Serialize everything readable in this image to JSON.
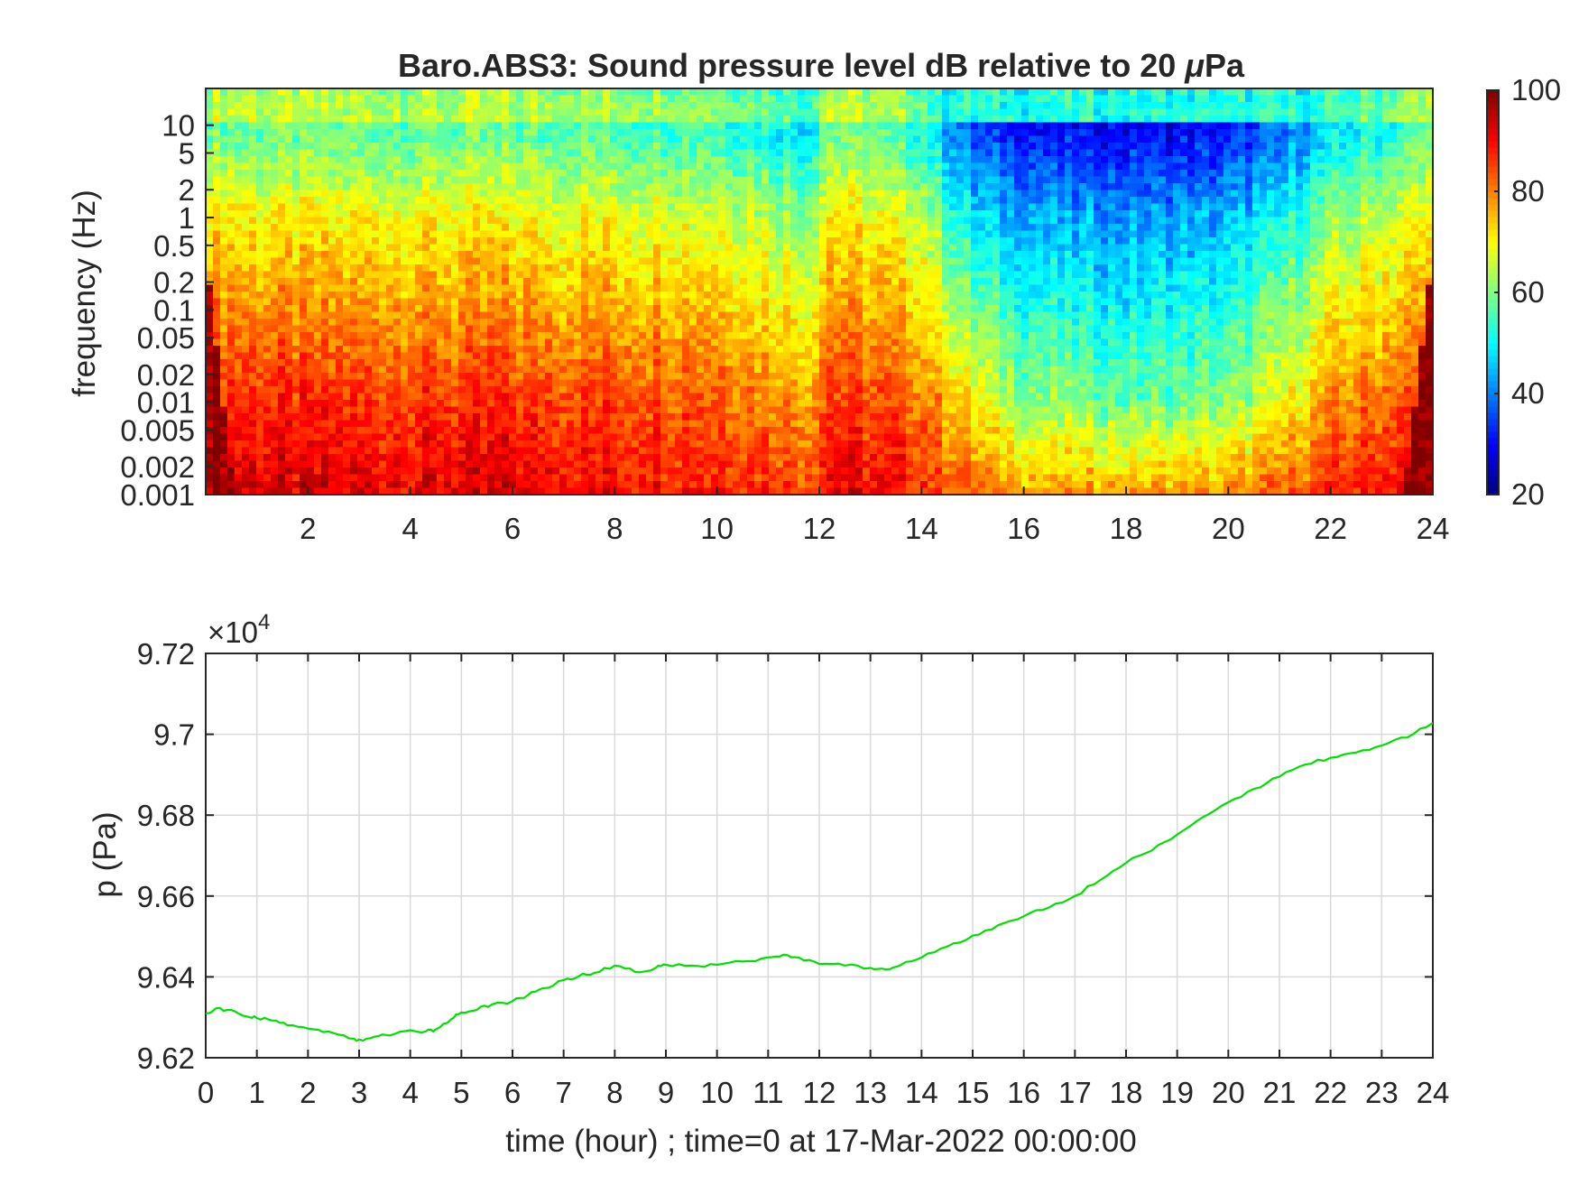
{
  "chart_data": [
    {
      "type": "heatmap",
      "title": "Baro.ABS3: Sound pressure level dB relative to 20 μPa",
      "title_main": "Baro.ABS3: Sound pressure level dB relative to 20 ",
      "title_mu": "μ",
      "title_tail": "Pa",
      "ylabel": "frequency (Hz)",
      "xlabel": "",
      "x_range_hours": [
        0,
        24
      ],
      "x_ticks": [
        "2",
        "4",
        "6",
        "8",
        "10",
        "12",
        "14",
        "16",
        "18",
        "20",
        "22",
        "24"
      ],
      "x_tick_values": [
        2,
        4,
        6,
        8,
        10,
        12,
        14,
        16,
        18,
        20,
        22,
        24
      ],
      "y_scale": "log",
      "y_range_hz": [
        0.001,
        25
      ],
      "y_ticks": [
        "10",
        "5",
        "2",
        "1",
        "0.5",
        "0.2",
        "0.1",
        "0.05",
        "0.02",
        "0.01",
        "0.005",
        "0.002",
        "0.001"
      ],
      "y_tick_values": [
        10,
        5,
        2,
        1,
        0.5,
        0.2,
        0.1,
        0.05,
        0.02,
        0.01,
        0.005,
        0.002,
        0.001
      ],
      "colorbar": {
        "range_db": [
          20,
          100
        ],
        "ticks": [
          "100",
          "80",
          "60",
          "40",
          "20"
        ],
        "tick_values": [
          100,
          80,
          60,
          40,
          20
        ],
        "colormap": "jet"
      },
      "level_profile_by_hour": {
        "hours": [
          0,
          2,
          4,
          6,
          8,
          10,
          11.8,
          12.2,
          14,
          15,
          16,
          18,
          20,
          21,
          22,
          24
        ],
        "low_band_db": [
          95,
          92,
          92,
          93,
          90,
          89,
          86,
          92,
          88,
          82,
          78,
          77,
          78,
          82,
          86,
          94
        ],
        "mid_band_db": [
          88,
          86,
          86,
          86,
          85,
          84,
          78,
          86,
          82,
          70,
          62,
          58,
          60,
          68,
          78,
          86
        ],
        "high_band_db": [
          72,
          70,
          70,
          70,
          69,
          68,
          62,
          72,
          66,
          48,
          44,
          42,
          44,
          50,
          60,
          70
        ]
      }
    },
    {
      "type": "line",
      "title": "",
      "ylabel": "p (Pa)",
      "xlabel": "time (hour) ; time=0 at 17-Mar-2022 00:00:00",
      "y_multiplier_base": "×10",
      "y_multiplier_exp": "4",
      "xlim": [
        0,
        24
      ],
      "ylim": [
        9.62,
        9.72
      ],
      "x_ticks": [
        "0",
        "1",
        "2",
        "3",
        "4",
        "5",
        "6",
        "7",
        "8",
        "9",
        "10",
        "11",
        "12",
        "13",
        "14",
        "15",
        "16",
        "17",
        "18",
        "19",
        "20",
        "21",
        "22",
        "23",
        "24"
      ],
      "x_tick_values": [
        0,
        1,
        2,
        3,
        4,
        5,
        6,
        7,
        8,
        9,
        10,
        11,
        12,
        13,
        14,
        15,
        16,
        17,
        18,
        19,
        20,
        21,
        22,
        23,
        24
      ],
      "y_ticks": [
        "9.72",
        "9.7",
        "9.68",
        "9.66",
        "9.64",
        "9.62"
      ],
      "y_tick_values": [
        9.72,
        9.7,
        9.68,
        9.66,
        9.64,
        9.62
      ],
      "grid": true,
      "line_color": "#00e000",
      "series": [
        {
          "x": [
            0,
            0.2,
            0.5,
            0.8,
            1,
            1.3,
            1.6,
            2,
            2.4,
            2.8,
            3,
            3.3,
            3.6,
            4,
            4.3,
            4.5,
            4.8,
            5,
            5.3,
            5.6,
            6,
            6.3,
            6.6,
            7,
            7.3,
            7.6,
            8,
            8.4,
            8.8,
            9,
            9.5,
            10,
            10.5,
            11,
            11.3,
            11.6,
            12,
            12.5,
            13,
            13.3,
            13.6,
            14,
            14.5,
            15,
            15.5,
            16,
            16.5,
            17,
            17.5,
            18,
            18.5,
            19,
            19.5,
            20,
            20.5,
            21,
            21.5,
            22,
            22.5,
            23,
            23.5,
            24
          ],
          "y": [
            9.631,
            9.6322,
            9.6318,
            9.6302,
            9.6298,
            9.6292,
            9.628,
            9.6272,
            9.6265,
            9.6248,
            9.6245,
            9.6252,
            9.6255,
            9.6268,
            9.6265,
            9.627,
            9.6295,
            9.6312,
            9.6318,
            9.6332,
            9.634,
            9.6355,
            9.6372,
            9.6392,
            9.6402,
            9.641,
            9.6428,
            9.6412,
            9.6422,
            9.643,
            9.6428,
            9.643,
            9.6438,
            9.6448,
            9.6455,
            9.6448,
            9.6432,
            9.6428,
            9.6422,
            9.6418,
            9.643,
            9.6448,
            9.6475,
            9.6502,
            9.6528,
            9.655,
            9.6572,
            9.66,
            9.664,
            9.6682,
            9.6712,
            9.6752,
            9.6795,
            9.6832,
            9.6865,
            9.6895,
            9.6925,
            9.6942,
            9.6955,
            9.6972,
            9.6992,
            9.7028
          ]
        }
      ]
    }
  ]
}
